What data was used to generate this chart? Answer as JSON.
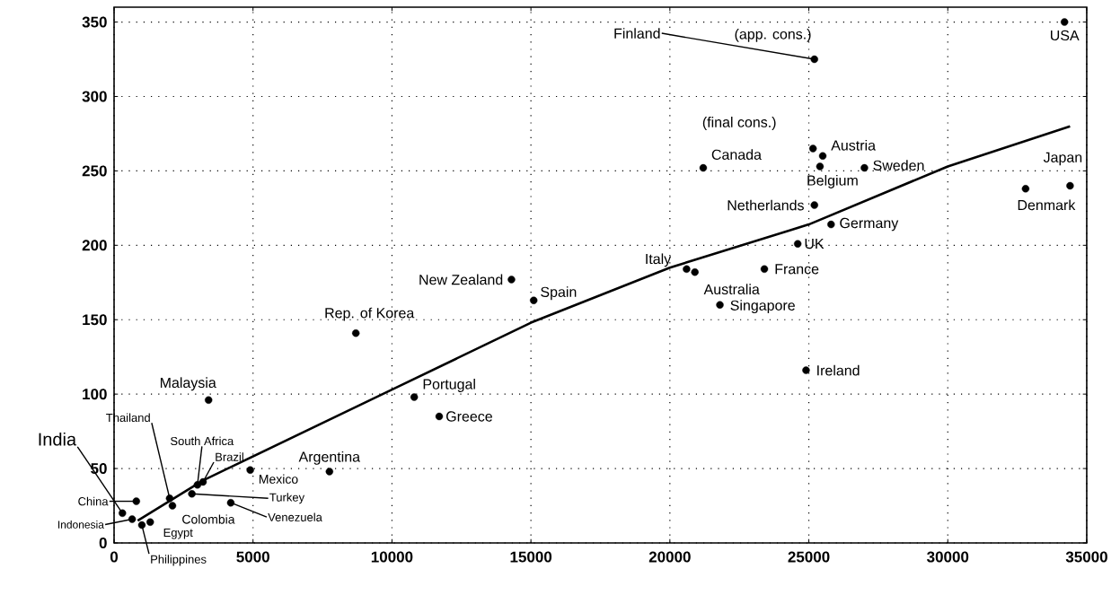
{
  "chart_data": {
    "type": "scatter",
    "xlim": [
      0,
      35000
    ],
    "ylim": [
      0,
      360
    ],
    "xticks": [
      0,
      5000,
      10000,
      15000,
      20000,
      25000,
      30000,
      35000
    ],
    "yticks": [
      0,
      50,
      100,
      150,
      200,
      250,
      300,
      350
    ],
    "grid": true,
    "marker": "circle",
    "series": [
      {
        "color": "#000000",
        "x": [
          34200,
          25200,
          25150,
          25500,
          25400,
          21200,
          27000,
          34400,
          32800,
          25200,
          25800,
          24600,
          20600,
          20900,
          23400,
          21800,
          24900,
          15100,
          14300,
          8700,
          3400,
          10800,
          11700,
          4900,
          7750,
          2800,
          3200,
          3000,
          2000,
          2100,
          4200,
          800,
          1300,
          650,
          300,
          1000
        ],
        "values": [
          350,
          325,
          265,
          260,
          253,
          252,
          252,
          240,
          238,
          227,
          214,
          201,
          184,
          182,
          184,
          160,
          116,
          163,
          177,
          141,
          96,
          98,
          85,
          49,
          48,
          33,
          41,
          39,
          30,
          25,
          27,
          28,
          14,
          16,
          20,
          12
        ]
      },
      {
        "type": "line",
        "marker": "none",
        "color": "#000000",
        "x": [
          850,
          3200,
          10000,
          15000,
          20000,
          25000,
          30000,
          34400
        ],
        "values": [
          15,
          42,
          103,
          148,
          185,
          214,
          253,
          280
        ]
      }
    ],
    "annotations": [
      {
        "text": "USA",
        "x": 34200,
        "y": 350
      },
      {
        "text": "Finland",
        "x": 25200,
        "y": 325
      },
      {
        "text": "(app. cons.)",
        "x": 25200,
        "y": 325
      },
      {
        "text": "(final cons.)",
        "x": 25150,
        "y": 265
      },
      {
        "text": "Austria",
        "x": 25500,
        "y": 260
      },
      {
        "text": "Belgium",
        "x": 25400,
        "y": 253
      },
      {
        "text": "Canada",
        "x": 21200,
        "y": 252
      },
      {
        "text": "Sweden",
        "x": 27000,
        "y": 252
      },
      {
        "text": "Japan",
        "x": 34400,
        "y": 240
      },
      {
        "text": "Denmark",
        "x": 32800,
        "y": 238
      },
      {
        "text": "Netherlands",
        "x": 25200,
        "y": 227
      },
      {
        "text": "Germany",
        "x": 25800,
        "y": 214
      },
      {
        "text": "UK",
        "x": 24600,
        "y": 201
      },
      {
        "text": "Italy",
        "x": 20600,
        "y": 184
      },
      {
        "text": "Australia",
        "x": 20900,
        "y": 182
      },
      {
        "text": "France",
        "x": 23400,
        "y": 184
      },
      {
        "text": "Singapore",
        "x": 21800,
        "y": 160
      },
      {
        "text": "Ireland",
        "x": 24900,
        "y": 116
      },
      {
        "text": "Spain",
        "x": 15100,
        "y": 163
      },
      {
        "text": "New Zealand",
        "x": 14300,
        "y": 177
      },
      {
        "text": "Rep. of Korea",
        "x": 8700,
        "y": 141
      },
      {
        "text": "Malaysia",
        "x": 3400,
        "y": 96
      },
      {
        "text": "Portugal",
        "x": 10800,
        "y": 98
      },
      {
        "text": "Greece",
        "x": 11700,
        "y": 85
      },
      {
        "text": "Mexico",
        "x": 4900,
        "y": 49
      },
      {
        "text": "Argentina",
        "x": 7750,
        "y": 48
      },
      {
        "text": "Turkey",
        "x": 2800,
        "y": 33
      },
      {
        "text": "Brazil",
        "x": 3200,
        "y": 41
      },
      {
        "text": "South Africa",
        "x": 3000,
        "y": 39
      },
      {
        "text": "Thailand",
        "x": 2000,
        "y": 30
      },
      {
        "text": "Colombia",
        "x": 2100,
        "y": 25
      },
      {
        "text": "Venezuela",
        "x": 4200,
        "y": 27
      },
      {
        "text": "China",
        "x": 800,
        "y": 28
      },
      {
        "text": "Egypt",
        "x": 1300,
        "y": 14
      },
      {
        "text": "Indonesia",
        "x": 650,
        "y": 16
      },
      {
        "text": "India",
        "x": 300,
        "y": 20
      },
      {
        "text": "Philippines",
        "x": 1000,
        "y": 12
      }
    ]
  }
}
